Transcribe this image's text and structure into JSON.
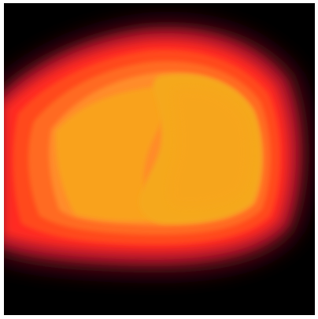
{
  "image": {
    "subject": "glowing-blob",
    "colors": {
      "background": "#000000",
      "outer_glow": "#6a0a1c",
      "dark_red": "#b3122a",
      "red": "#ff2a22",
      "red_orange": "#ff4a1c",
      "orange": "#ff6a22",
      "light_orange": "#ff8c2a",
      "amber": "#f9a21e",
      "core": "#f5a81c"
    }
  }
}
